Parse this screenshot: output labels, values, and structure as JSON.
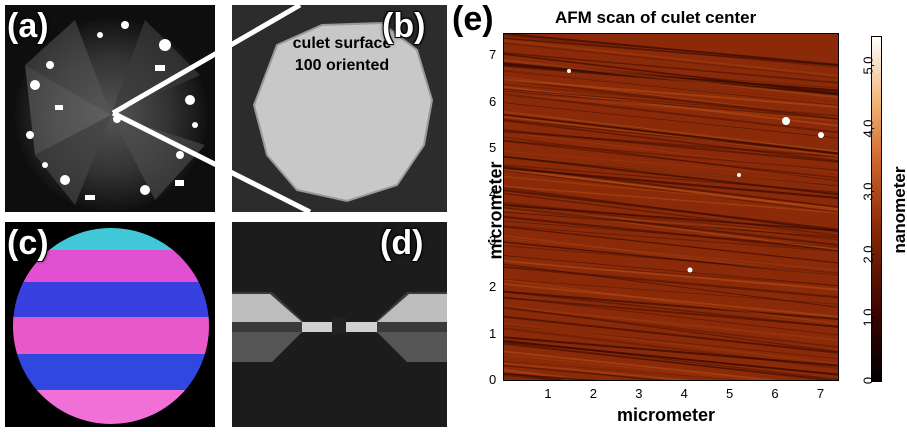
{
  "panels": {
    "a": {
      "label": "(a)"
    },
    "b": {
      "label": "(b)",
      "annotation_line1": "culet surface",
      "annotation_line2": "100 oriented"
    },
    "c": {
      "label": "(c)"
    },
    "d": {
      "label": "(d)"
    },
    "e": {
      "label": "(e)"
    }
  },
  "afm": {
    "title": "AFM scan of culet center",
    "xlabel": "micrometer",
    "ylabel": "micrometer",
    "colorbar_label": "nanometer",
    "x_ticks": [
      "1",
      "2",
      "3",
      "4",
      "5",
      "6",
      "7"
    ],
    "y_ticks": [
      "0",
      "1",
      "2",
      "3",
      "4",
      "5",
      "6",
      "7"
    ],
    "colorbar_ticks": [
      "0",
      "1,0",
      "2,0",
      "3,0",
      "4,0",
      "5,0"
    ]
  },
  "chart_data": {
    "type": "heatmap",
    "title": "AFM scan of culet center",
    "xlabel": "micrometer",
    "ylabel": "micrometer",
    "xlim": [
      0,
      7.4
    ],
    "ylim": [
      0,
      7.5
    ],
    "colorbar": {
      "label": "nanometer",
      "range": [
        0,
        5.5
      ],
      "ticks": [
        0,
        1.0,
        2.0,
        3.0,
        4.0,
        5.0
      ]
    }
  },
  "colors": {
    "afm_base": "#8a2a08",
    "afm_dark": "#3a0a00",
    "afm_light": "#b04a14"
  }
}
